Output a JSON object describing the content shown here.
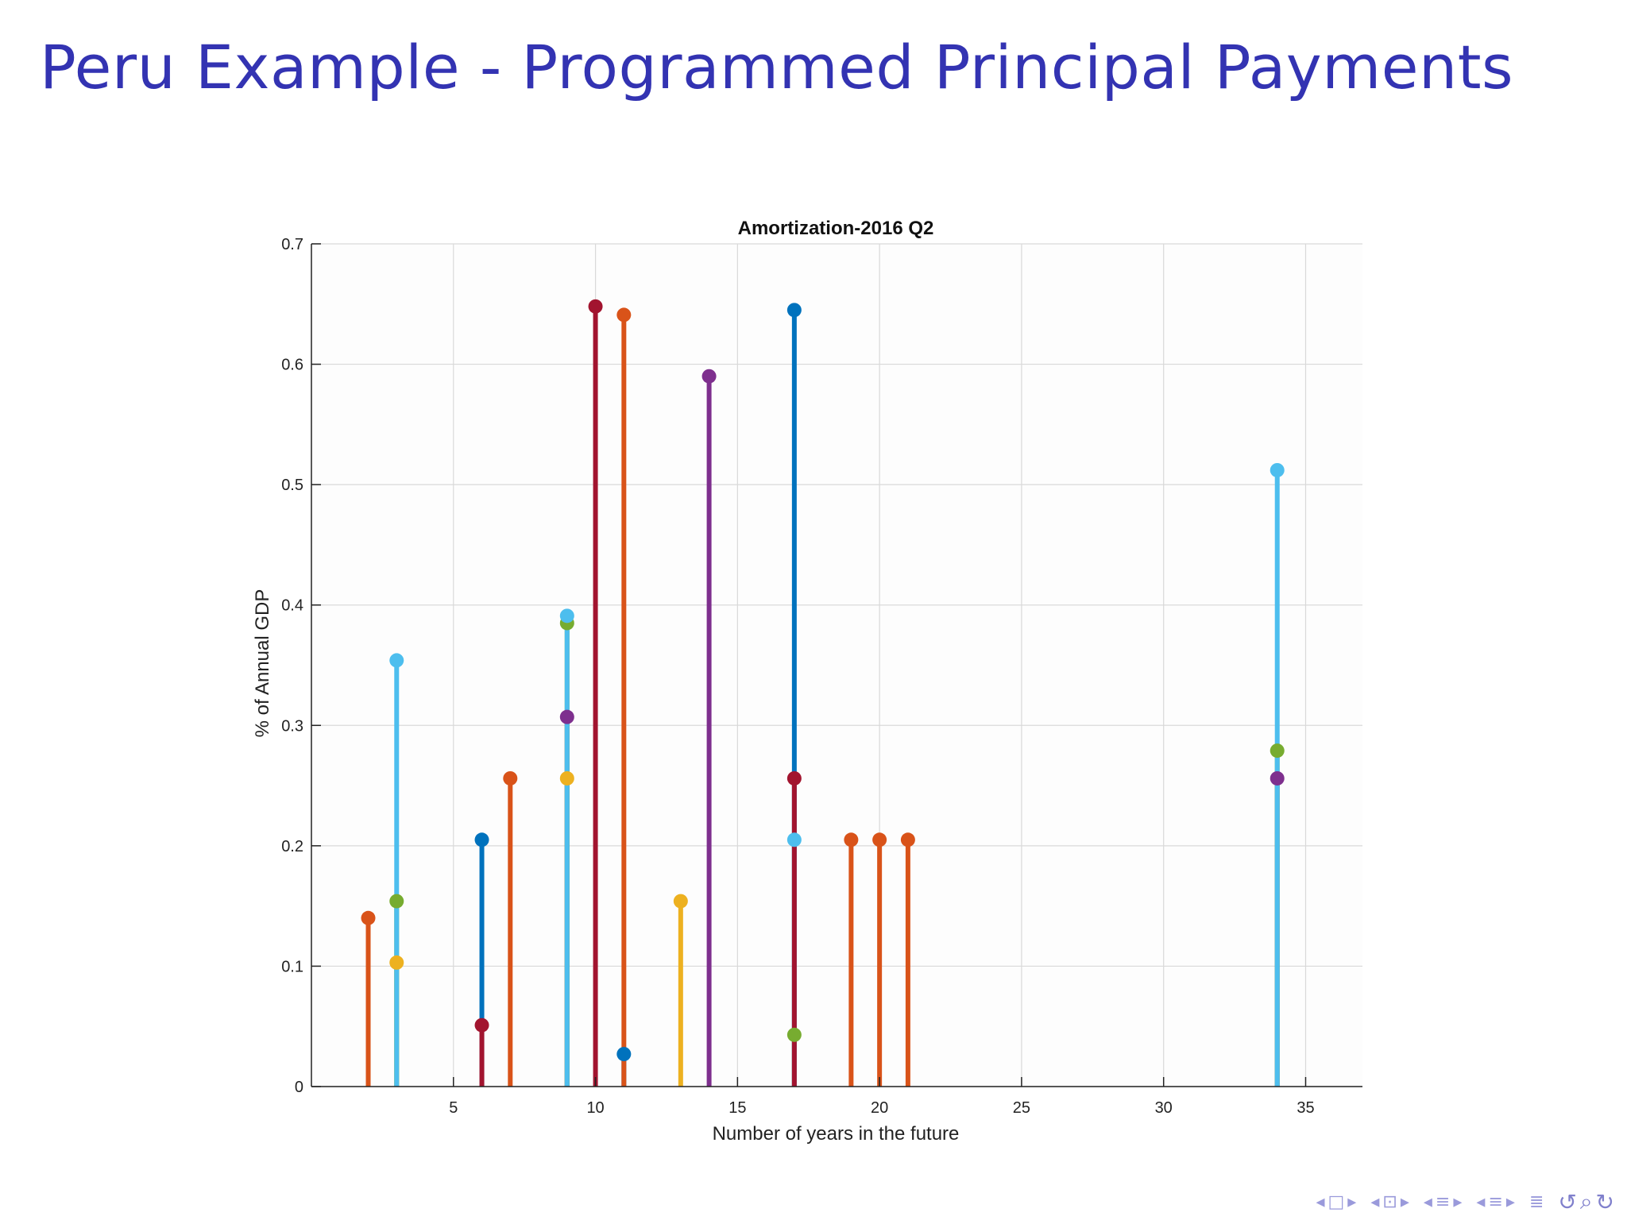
{
  "slide": {
    "title": "Peru Example - Programmed Principal Payments"
  },
  "chart_data": {
    "type": "stem",
    "title": "Amortization-2016 Q2",
    "xlabel": "Number of years in the future",
    "ylabel": "% of Annual GDP",
    "xlim": [
      0,
      37
    ],
    "ylim": [
      0,
      0.7
    ],
    "xticks": [
      5,
      10,
      15,
      20,
      25,
      30,
      35
    ],
    "yticks": [
      0,
      0.1,
      0.2,
      0.3,
      0.4,
      0.5,
      0.6,
      0.7
    ],
    "grid": true,
    "series": [
      {
        "color": "#0072bd",
        "points": [
          [
            6,
            0.205
          ],
          [
            11,
            0.027
          ],
          [
            17,
            0.645
          ]
        ]
      },
      {
        "color": "#d95319",
        "points": [
          [
            2,
            0.14
          ],
          [
            7,
            0.256
          ],
          [
            11,
            0.641
          ],
          [
            19,
            0.205
          ],
          [
            20,
            0.205
          ],
          [
            21,
            0.205
          ]
        ]
      },
      {
        "color": "#edb120",
        "points": [
          [
            3,
            0.103
          ],
          [
            9,
            0.256
          ],
          [
            13,
            0.154
          ]
        ]
      },
      {
        "color": "#7e2f8e",
        "points": [
          [
            9,
            0.307
          ],
          [
            14,
            0.59
          ],
          [
            34,
            0.256
          ]
        ]
      },
      {
        "color": "#77ac30",
        "points": [
          [
            3,
            0.154
          ],
          [
            9,
            0.385
          ],
          [
            17,
            0.043
          ],
          [
            34,
            0.279
          ]
        ]
      },
      {
        "color": "#4dbeee",
        "points": [
          [
            3,
            0.354
          ],
          [
            9,
            0.391
          ],
          [
            17,
            0.205
          ],
          [
            34,
            0.512
          ]
        ]
      },
      {
        "color": "#a2142f",
        "points": [
          [
            6,
            0.051
          ],
          [
            10,
            0.648
          ],
          [
            17,
            0.256
          ]
        ]
      }
    ]
  },
  "nav": {
    "icons": [
      "prev-frame",
      "frame",
      "next-frame",
      "prev-slide",
      "slide",
      "next-slide",
      "prev-section",
      "section",
      "next-section",
      "prev-subsection",
      "subsection",
      "next-subsection",
      "back",
      "search",
      "forward"
    ]
  }
}
